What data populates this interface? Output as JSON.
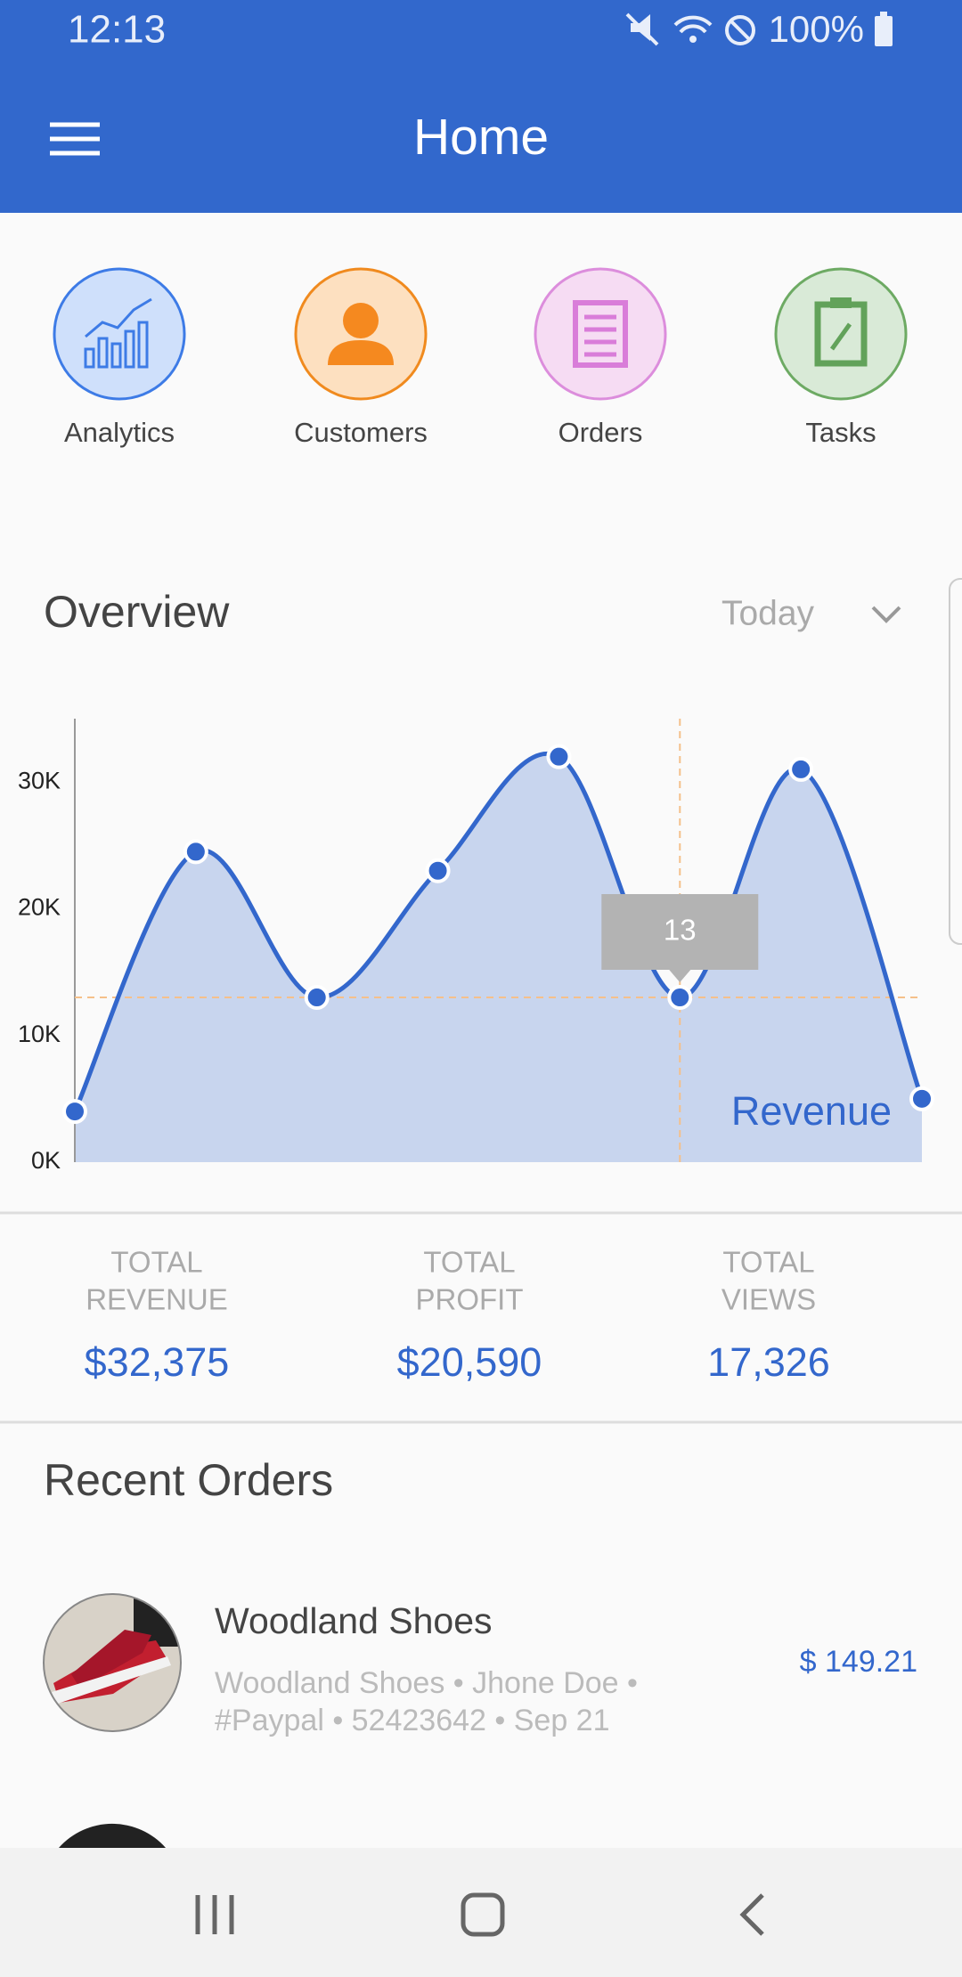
{
  "status_bar": {
    "time": "12:13",
    "battery": "100%"
  },
  "app_bar": {
    "title": "Home"
  },
  "shortcuts": [
    "Analytics",
    "Customers",
    "Orders",
    "Tasks"
  ],
  "overview": {
    "title": "Overview",
    "period": "Today"
  },
  "chart_data": {
    "type": "area",
    "categories": [
      null,
      null,
      null,
      null,
      null,
      null,
      null,
      null
    ],
    "series": [
      {
        "name": "Revenue",
        "color": "#3367cc",
        "values": [
          4,
          24.5,
          13,
          23,
          32,
          13,
          31,
          5
        ]
      }
    ],
    "ylim": [
      0,
      35
    ],
    "yticks": [
      {
        "value": 0,
        "label": "0K"
      },
      {
        "value": 10,
        "label": "10K"
      },
      {
        "value": 20,
        "label": "20K"
      },
      {
        "value": 30,
        "label": "30K"
      }
    ],
    "grid": false,
    "tooltip_index": 5
  },
  "stats": [
    {
      "label_1": "TOTAL",
      "label_2": "REVENUE",
      "value": "$32,375"
    },
    {
      "label_1": "TOTAL",
      "label_2": "PROFIT",
      "value": "$20,590"
    },
    {
      "label_1": "TOTAL",
      "label_2": "VIEWS",
      "value": "17,326"
    }
  ],
  "recent_orders": {
    "title": "Recent Orders",
    "items": [
      {
        "name": "Woodland Shoes",
        "details_1": "Woodland Shoes • Jhone Doe •",
        "details_2": "#Paypal • 52423642 • Sep 21",
        "price": "$ 149.21"
      }
    ]
  }
}
